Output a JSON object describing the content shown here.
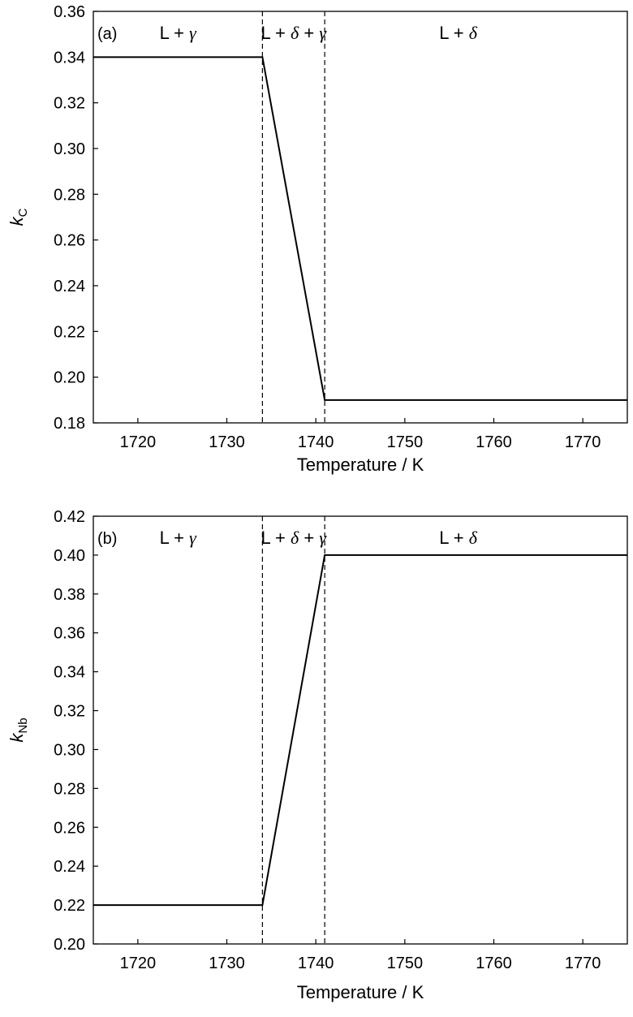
{
  "chart_data": [
    {
      "type": "line",
      "panel_label": "(a)",
      "xlabel": "Temperature / K",
      "ylabel": {
        "main": "k",
        "sub": "C"
      },
      "xlim": [
        1715,
        1775
      ],
      "ylim": [
        0.18,
        0.36
      ],
      "xticks": [
        1720,
        1730,
        1740,
        1750,
        1760,
        1770
      ],
      "yticks": [
        0.18,
        0.2,
        0.22,
        0.24,
        0.26,
        0.28,
        0.3,
        0.32,
        0.34,
        0.36
      ],
      "ytick_labels": [
        "0.18",
        "0.20",
        "0.22",
        "0.24",
        "0.26",
        "0.28",
        "0.30",
        "0.32",
        "0.34",
        "0.36"
      ],
      "series": [
        {
          "x": [
            1715,
            1734,
            1741,
            1775
          ],
          "y": [
            0.34,
            0.34,
            0.19,
            0.19
          ]
        }
      ],
      "vlines": [
        1734,
        1741
      ],
      "regions": [
        {
          "text": "L + ",
          "greek": "γ",
          "greek2": "",
          "x": 1724.5
        },
        {
          "text": "L + ",
          "greek": "δ",
          "mid": " + ",
          "greek2": "γ",
          "x": 1737.5
        },
        {
          "text": "L + ",
          "greek": "δ",
          "greek2": "",
          "x": 1756
        }
      ],
      "grid": false
    },
    {
      "type": "line",
      "panel_label": "(b)",
      "xlabel": "Temperature / K",
      "ylabel": {
        "main": "k",
        "sub": "Nb"
      },
      "xlim": [
        1715,
        1775
      ],
      "ylim": [
        0.2,
        0.42
      ],
      "xticks": [
        1720,
        1730,
        1740,
        1750,
        1760,
        1770
      ],
      "yticks": [
        0.2,
        0.22,
        0.24,
        0.26,
        0.28,
        0.3,
        0.32,
        0.34,
        0.36,
        0.38,
        0.4,
        0.42
      ],
      "ytick_labels": [
        "0.20",
        "0.22",
        "0.24",
        "0.26",
        "0.28",
        "0.30",
        "0.32",
        "0.34",
        "0.36",
        "0.38",
        "0.40",
        "0.42"
      ],
      "series": [
        {
          "x": [
            1715,
            1734,
            1741,
            1775
          ],
          "y": [
            0.22,
            0.22,
            0.4,
            0.4
          ]
        }
      ],
      "vlines": [
        1734,
        1741
      ],
      "regions": [
        {
          "text": "L + ",
          "greek": "γ",
          "greek2": "",
          "x": 1724.5
        },
        {
          "text": "L + ",
          "greek": "δ",
          "mid": " + ",
          "greek2": "γ",
          "x": 1737.5
        },
        {
          "text": "L + ",
          "greek": "δ",
          "greek2": "",
          "x": 1756
        }
      ],
      "grid": false
    }
  ]
}
